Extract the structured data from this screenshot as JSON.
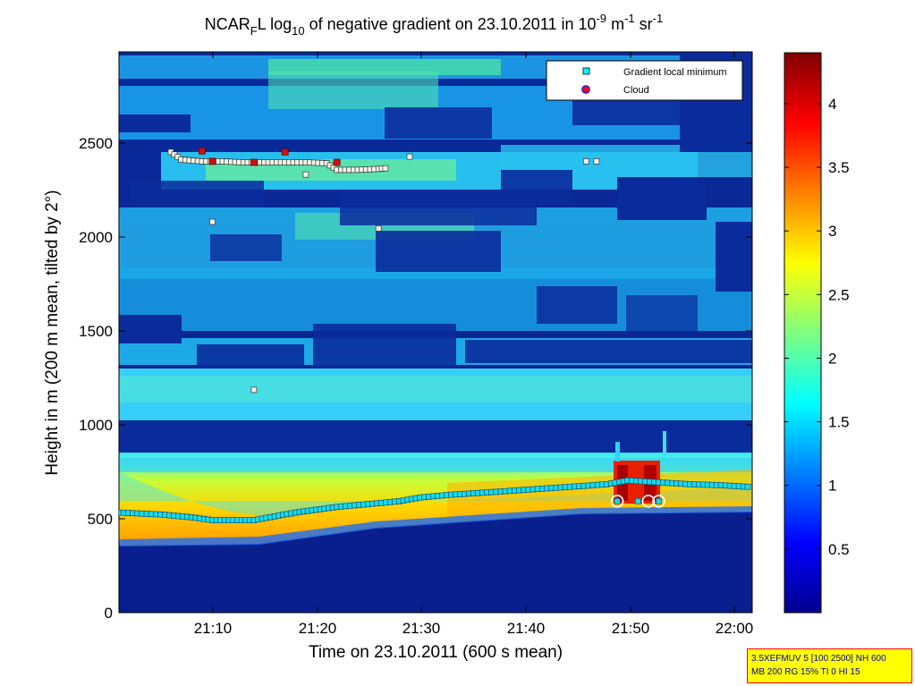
{
  "chart_data": {
    "type": "heatmap",
    "title": {
      "p1": "NCAR",
      "p1_sub": "F",
      "p2": "L log",
      "p2_sub": "10",
      "p3": " of negative gradient on 23.10.2011 in 10",
      "p3_sup": "-9",
      "p4": " m",
      "p4_sup": "-1",
      "p5": " sr",
      "p5_sup": "-1"
    },
    "xlabel": "Time on 23.10.2011 (600 s mean)",
    "ylabel": "Height in m (200 m mean, tilted by 2°)",
    "xlim": [
      "21:01",
      "22:02"
    ],
    "ylim": [
      0,
      2970
    ],
    "x_ticks": [
      "21:10",
      "21:20",
      "21:30",
      "21:40",
      "21:50",
      "22:00"
    ],
    "y_ticks": [
      0,
      500,
      1000,
      1500,
      2000,
      2500
    ],
    "colorbar": {
      "colormap": "jet",
      "range": [
        0,
        4.4
      ],
      "ticks": [
        0.5,
        1,
        1.5,
        2,
        2.5,
        3,
        3.5,
        4
      ]
    },
    "legend": {
      "position": "top-right",
      "entries": [
        {
          "label": "Gradient local minimum",
          "marker": "square",
          "color": "#00ffff"
        },
        {
          "label": "Cloud",
          "marker": "circle",
          "color": "#ff0000"
        }
      ]
    },
    "series": [
      {
        "marker": "gradient-minimum",
        "points": [
          [
            "21:01",
            530
          ],
          [
            "21:05",
            520
          ],
          [
            "21:08",
            505
          ],
          [
            "21:10",
            490
          ],
          [
            "21:12",
            490
          ],
          [
            "21:14",
            490
          ],
          [
            "21:16",
            510
          ],
          [
            "21:18",
            530
          ],
          [
            "21:20",
            545
          ],
          [
            "21:22",
            560
          ],
          [
            "21:25",
            575
          ],
          [
            "21:28",
            590
          ],
          [
            "21:30",
            610
          ],
          [
            "21:33",
            625
          ],
          [
            "21:36",
            635
          ],
          [
            "21:40",
            650
          ],
          [
            "21:44",
            665
          ],
          [
            "21:48",
            680
          ],
          [
            "21:50",
            700
          ],
          [
            "21:53",
            690
          ],
          [
            "21:56",
            680
          ],
          [
            "21:59",
            675
          ],
          [
            "22:02",
            665
          ],
          [
            "21:06",
            2440
          ],
          [
            "21:07",
            2400
          ],
          [
            "21:09",
            2390
          ],
          [
            "21:11",
            2390
          ],
          [
            "21:13",
            2385
          ],
          [
            "21:15",
            2385
          ],
          [
            "21:17",
            2385
          ],
          [
            "21:19",
            2385
          ],
          [
            "21:21",
            2380
          ],
          [
            "21:22",
            2345
          ],
          [
            "21:24",
            2345
          ],
          [
            "21:26",
            2350
          ],
          [
            "21:27",
            2355
          ],
          [
            "21:29",
            2415
          ],
          [
            "21:46",
            2390
          ],
          [
            "21:47",
            2390
          ],
          [
            "21:19",
            2320
          ],
          [
            "21:10",
            2070
          ],
          [
            "21:26",
            2035
          ],
          [
            "21:14",
            1180
          ],
          [
            "21:49",
            590
          ],
          [
            "21:51",
            590
          ],
          [
            "21:53",
            590
          ]
        ]
      },
      {
        "marker": "cloud",
        "points": [
          [
            "21:09",
            2445
          ],
          [
            "21:10",
            2390
          ],
          [
            "21:14",
            2385
          ],
          [
            "21:17",
            2440
          ],
          [
            "21:22",
            2385
          ],
          [
            "21:49",
            590
          ],
          [
            "21:52",
            590
          ],
          [
            "21:53",
            590
          ]
        ]
      }
    ]
  },
  "info_box": {
    "line1": "3.5XEFMUV 5 [100 2500] NH 600",
    "line2": "MB 200 RG 15% TI 0 HI 15"
  }
}
